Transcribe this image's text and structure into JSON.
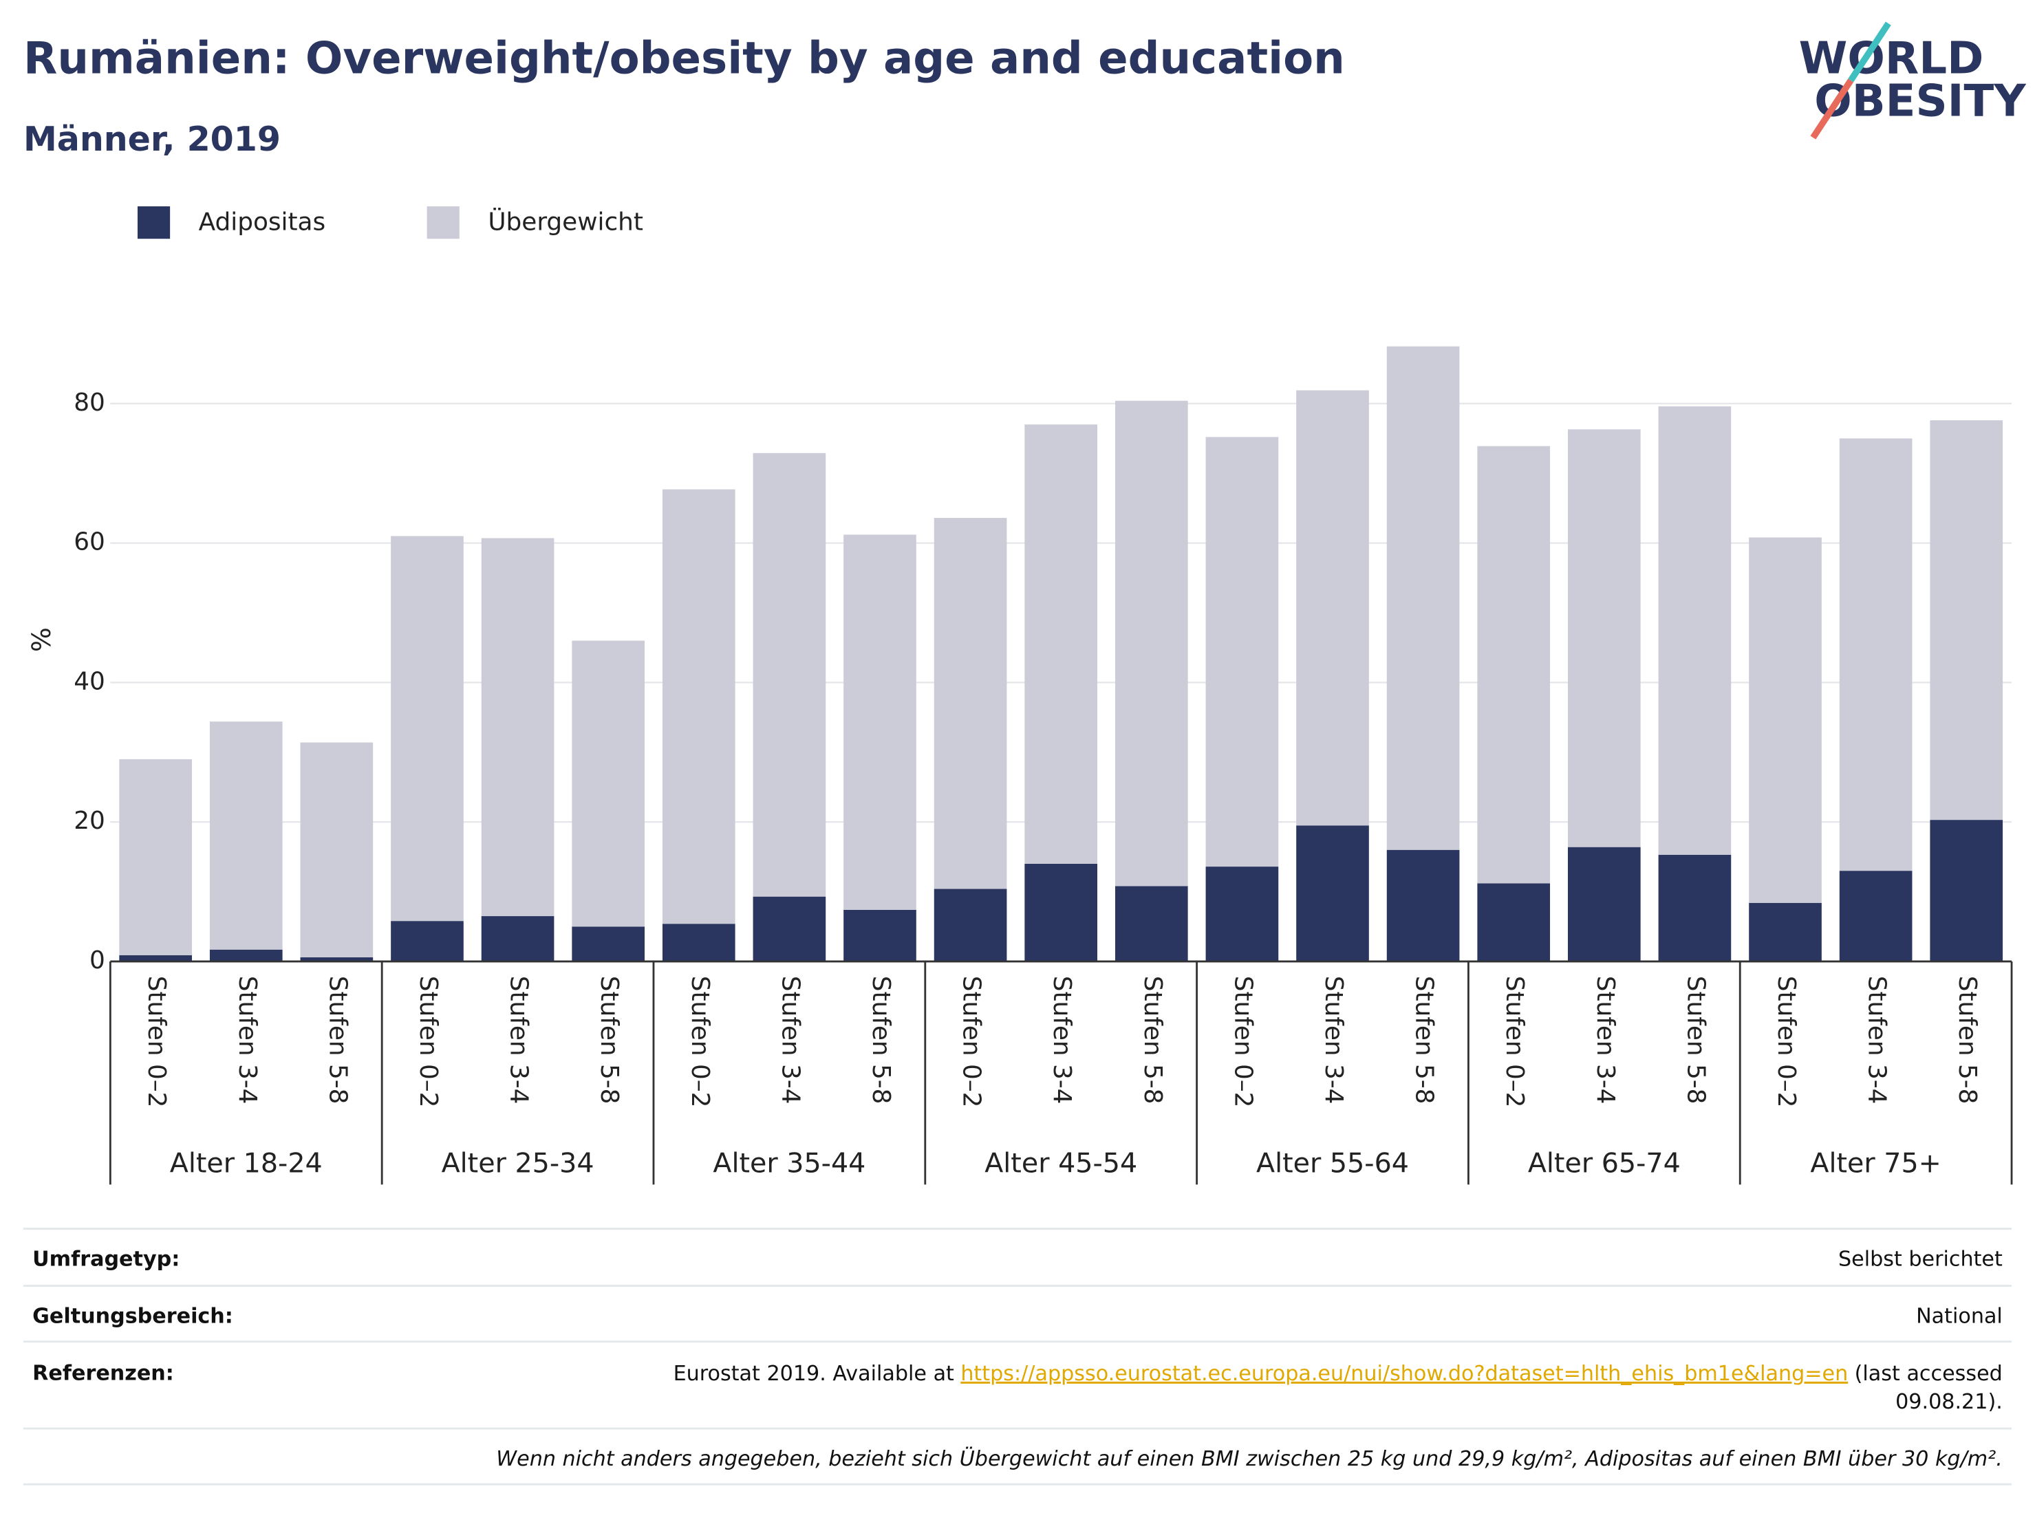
{
  "chart_data": {
    "type": "stacked_bar",
    "title": "Rumänien: Overweight/obesity by age and education",
    "subtitle": "Männer, 2019",
    "y_label": "%",
    "categories": [
      "Stufen 0–2",
      "Stufen 3-4",
      "Stufen 5-8",
      "Stufen 0–2",
      "Stufen 3-4",
      "Stufen 5-8",
      "Stufen 0–2",
      "Stufen 3-4",
      "Stufen 5-8",
      "Stufen 0–2",
      "Stufen 3-4",
      "Stufen 5-8",
      "Stufen 0–2",
      "Stufen 3-4",
      "Stufen 5-8",
      "Stufen 0–2",
      "Stufen 3-4",
      "Stufen 5-8",
      "Stufen 0–2",
      "Stufen 3-4",
      "Stufen 5-8"
    ],
    "groups": [
      "Alter 18-24",
      "Alter 25-34",
      "Alter 35-44",
      "Alter 45-54",
      "Alter 55-64",
      "Alter 65-74",
      "Alter 75+"
    ],
    "series": [
      {
        "name": "Adipositas",
        "color": "#2a3560",
        "values": [
          0.9,
          1.7,
          0.6,
          5.8,
          6.5,
          5.0,
          5.4,
          9.3,
          7.4,
          10.4,
          14.0,
          10.8,
          13.6,
          19.5,
          16.0,
          11.2,
          16.4,
          15.3,
          8.4,
          13.0,
          20.3
        ]
      },
      {
        "name": "Übergewicht",
        "color": "#cbccd8",
        "values": [
          28.1,
          32.7,
          30.8,
          55.2,
          54.2,
          41.0,
          62.3,
          63.6,
          53.8,
          53.2,
          63.0,
          69.6,
          61.6,
          62.4,
          72.2,
          62.7,
          59.9,
          64.3,
          52.4,
          62.0,
          57.3
        ]
      }
    ],
    "ylim": [
      0,
      95
    ],
    "yticks": [
      0,
      20,
      40,
      60,
      80
    ],
    "grid": true
  },
  "logo": {
    "line1": "WORLD",
    "line2": "OBESITY"
  },
  "footer": {
    "rows": [
      {
        "label": "Umfragetyp:",
        "value": "Selbst berichtet"
      },
      {
        "label": "Geltungsbereich:",
        "value": "National"
      }
    ],
    "reference": {
      "label": "Referenzen:",
      "prefix": "Eurostat 2019. Available at",
      "link": "https://appsso.eurostat.ec.europa.eu/nui/show.do?dataset=hlth_ehis_bm1e&lang=en",
      "suffix": "(last accessed",
      "line2": "09.08.21)."
    },
    "note": "Wenn nicht anders angegeben, bezieht sich Übergewicht auf einen BMI zwischen 25 kg und 29,9 kg/m², Adipositas auf einen BMI über 30 kg/m²."
  }
}
